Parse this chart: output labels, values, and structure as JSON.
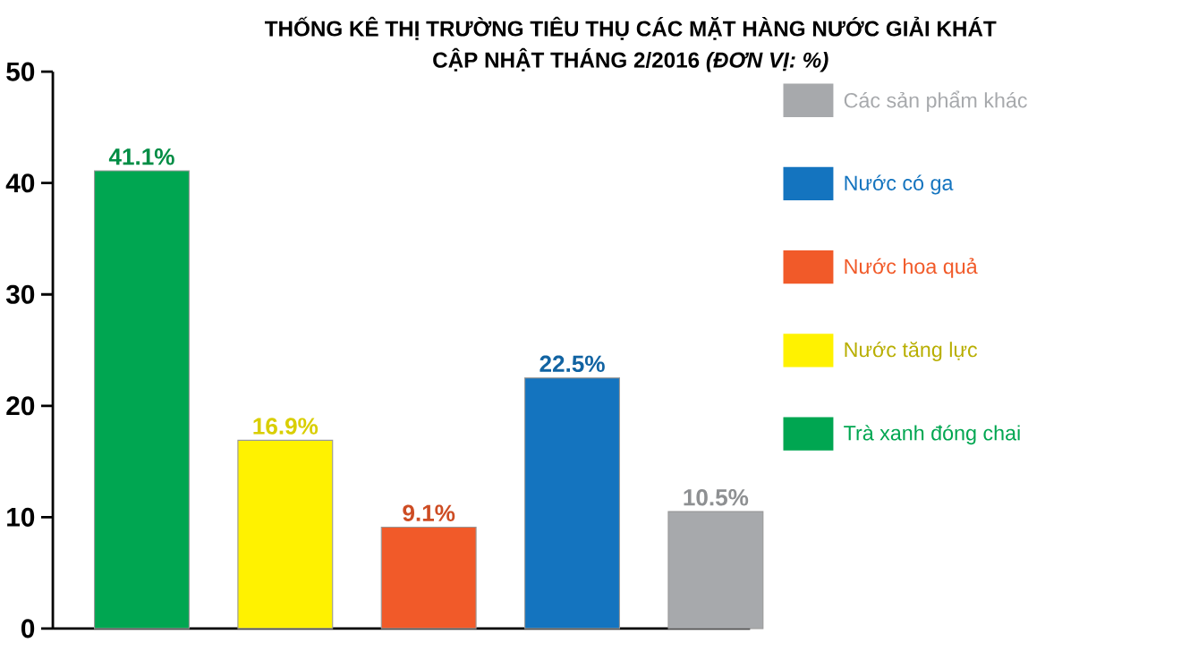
{
  "chart_data": {
    "type": "bar",
    "title": "THỐNG KÊ THỊ TRƯỜNG TIÊU THỤ CÁC MẶT HÀNG NƯỚC GIẢI KHÁT",
    "subtitle": "CẬP NHẬT THÁNG 2/2016 *(ĐƠN VỊ: %)*",
    "categories": [
      null,
      null,
      null,
      null,
      null
    ],
    "series": [
      {
        "name": "Các sản phẩm khác",
        "color": "#a7a9ac",
        "values": [
          null,
          null,
          null,
          null,
          10.5
        ],
        "value_labels": [
          null,
          null,
          null,
          null,
          "10.5%"
        ]
      },
      {
        "name": "Nước có ga",
        "color": "#1474bf",
        "values": [
          null,
          null,
          null,
          22.5,
          null
        ],
        "value_labels": [
          null,
          null,
          null,
          "22.5%",
          null
        ]
      },
      {
        "name": "Nước hoa quả",
        "color": "#f15a29",
        "values": [
          null,
          null,
          9.1,
          null,
          null
        ],
        "value_labels": [
          null,
          null,
          "9.1%",
          null,
          null
        ]
      },
      {
        "name": "Nước tăng lực",
        "color": "#fff200",
        "values": [
          null,
          16.9,
          null,
          null,
          null
        ],
        "value_labels": [
          null,
          "16.9%",
          null,
          null,
          null
        ]
      },
      {
        "name": "Trà xanh đóng chai",
        "color": "#00a651",
        "values": [
          41.1,
          null,
          null,
          null,
          null
        ],
        "value_labels": [
          "41.1%",
          null,
          null,
          null,
          null
        ]
      }
    ],
    "ylim": [
      0,
      50
    ],
    "yticks": [
      0,
      10,
      20,
      30,
      40,
      50
    ],
    "tick_labels": "y",
    "legend": "right"
  }
}
